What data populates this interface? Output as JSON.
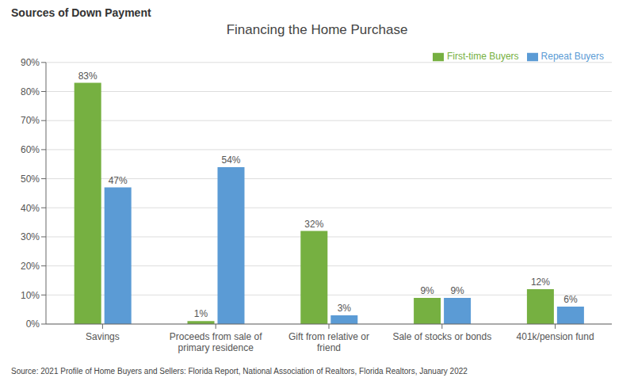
{
  "chart_data": {
    "type": "bar",
    "title": "Financing the Home Purchase",
    "subtitle": "Sources of Down Payment",
    "categories": [
      "Savings",
      "Proceeds from sale of\nprimary residence",
      "Gift from relative or\nfriend",
      "Sale of stocks or bonds",
      "401k/pension fund"
    ],
    "series": [
      {
        "name": "First-time Buyers",
        "color": "#76b041",
        "values": [
          83,
          1,
          32,
          9,
          12
        ],
        "value_labels": [
          "83%",
          "1%",
          "32%",
          "9%",
          "12%"
        ]
      },
      {
        "name": "Repeat Buyers",
        "color": "#5b9bd5",
        "values": [
          47,
          54,
          3,
          9,
          6
        ],
        "value_labels": [
          "47%",
          "54%",
          "3%",
          "9%",
          "6%"
        ]
      }
    ],
    "ylim": [
      0,
      90
    ],
    "yticks": [
      {
        "value": 0,
        "label": "0%"
      },
      {
        "value": 10,
        "label": "10%"
      },
      {
        "value": 20,
        "label": "20%"
      },
      {
        "value": 30,
        "label": "30%"
      },
      {
        "value": 40,
        "label": "40%"
      },
      {
        "value": 50,
        "label": "50%"
      },
      {
        "value": 60,
        "label": "60%"
      },
      {
        "value": 70,
        "label": "70%"
      },
      {
        "value": 80,
        "label": "80%"
      },
      {
        "value": 90,
        "label": "90%"
      }
    ],
    "grid": true,
    "legend": "upper right",
    "data_labels": true,
    "annotations": [
      "Source: 2021 Profile of Home Buyers and Sellers: Florida Report, National Association of Realtors, Florida Realtors, January 2022"
    ]
  }
}
